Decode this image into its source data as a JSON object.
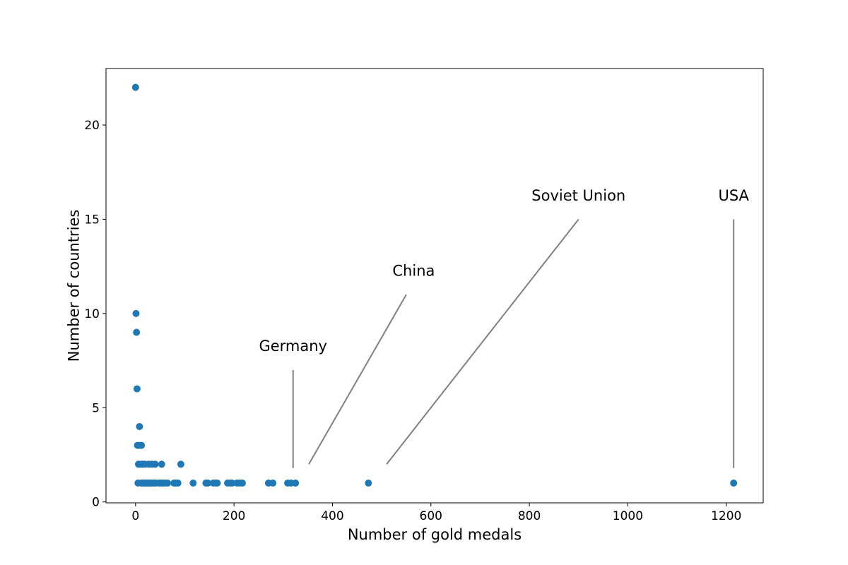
{
  "chart_data": {
    "type": "scatter",
    "title": "",
    "xlabel": "Number of gold medals",
    "ylabel": "Number of countries",
    "xlim": [
      -60,
      1275
    ],
    "ylim": [
      -0.05,
      23
    ],
    "xticks": [
      0,
      200,
      400,
      600,
      800,
      1000,
      1200
    ],
    "yticks": [
      0,
      5,
      10,
      15,
      20
    ],
    "grid": false,
    "marker_color": "#1f77b4",
    "annotation_color": "#808080",
    "points": [
      {
        "x": 0,
        "y": 22
      },
      {
        "x": 1,
        "y": 10
      },
      {
        "x": 2,
        "y": 9
      },
      {
        "x": 3,
        "y": 6
      },
      {
        "x": 8,
        "y": 4
      },
      {
        "x": 4,
        "y": 3
      },
      {
        "x": 8,
        "y": 3
      },
      {
        "x": 12,
        "y": 3
      },
      {
        "x": 6,
        "y": 2
      },
      {
        "x": 10,
        "y": 2
      },
      {
        "x": 14,
        "y": 2
      },
      {
        "x": 19,
        "y": 2
      },
      {
        "x": 27,
        "y": 2
      },
      {
        "x": 33,
        "y": 2
      },
      {
        "x": 40,
        "y": 2
      },
      {
        "x": 53,
        "y": 2
      },
      {
        "x": 92,
        "y": 2
      },
      {
        "x": 5,
        "y": 1
      },
      {
        "x": 11,
        "y": 1
      },
      {
        "x": 15,
        "y": 1
      },
      {
        "x": 18,
        "y": 1
      },
      {
        "x": 21,
        "y": 1
      },
      {
        "x": 24,
        "y": 1
      },
      {
        "x": 27,
        "y": 1
      },
      {
        "x": 30,
        "y": 1
      },
      {
        "x": 34,
        "y": 1
      },
      {
        "x": 38,
        "y": 1
      },
      {
        "x": 41,
        "y": 1
      },
      {
        "x": 48,
        "y": 1
      },
      {
        "x": 52,
        "y": 1
      },
      {
        "x": 56,
        "y": 1
      },
      {
        "x": 60,
        "y": 1
      },
      {
        "x": 65,
        "y": 1
      },
      {
        "x": 78,
        "y": 1
      },
      {
        "x": 82,
        "y": 1
      },
      {
        "x": 86,
        "y": 1
      },
      {
        "x": 117,
        "y": 1
      },
      {
        "x": 143,
        "y": 1
      },
      {
        "x": 147,
        "y": 1
      },
      {
        "x": 158,
        "y": 1
      },
      {
        "x": 162,
        "y": 1
      },
      {
        "x": 166,
        "y": 1
      },
      {
        "x": 187,
        "y": 1
      },
      {
        "x": 192,
        "y": 1
      },
      {
        "x": 196,
        "y": 1
      },
      {
        "x": 206,
        "y": 1
      },
      {
        "x": 212,
        "y": 1
      },
      {
        "x": 217,
        "y": 1
      },
      {
        "x": 270,
        "y": 1
      },
      {
        "x": 279,
        "y": 1
      },
      {
        "x": 309,
        "y": 1
      },
      {
        "x": 316,
        "y": 1
      },
      {
        "x": 325,
        "y": 1
      },
      {
        "x": 473,
        "y": 1
      },
      {
        "x": 1215,
        "y": 1
      }
    ],
    "annotations": [
      {
        "text": "Germany",
        "label_x": 320,
        "label_y": 8,
        "line_from": [
          320,
          7
        ],
        "line_to": [
          320,
          1.8
        ]
      },
      {
        "text": "China",
        "label_x": 565,
        "label_y": 12,
        "line_from": [
          550,
          11
        ],
        "line_to": [
          352,
          2
        ]
      },
      {
        "text": "Soviet Union",
        "label_x": 900,
        "label_y": 16,
        "line_from": [
          900,
          15
        ],
        "line_to": [
          510,
          2
        ]
      },
      {
        "text": "USA",
        "label_x": 1215,
        "label_y": 16,
        "line_from": [
          1215,
          15
        ],
        "line_to": [
          1215,
          1.8
        ]
      }
    ]
  }
}
